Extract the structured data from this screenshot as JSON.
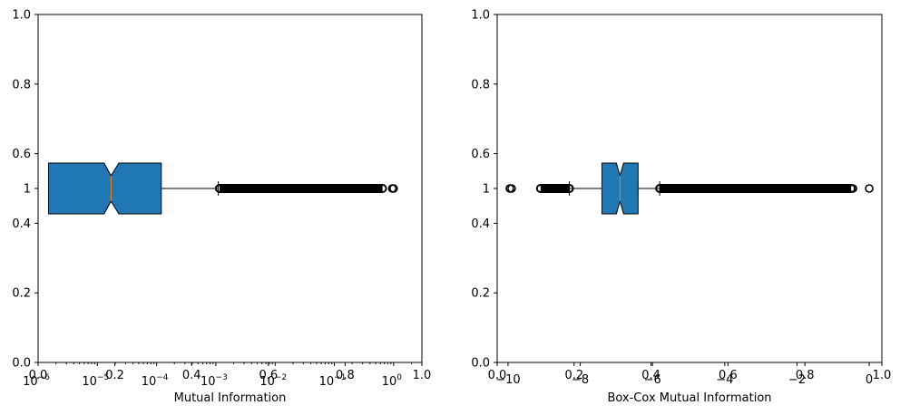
{
  "chart_data": [
    {
      "type": "boxplot",
      "orientation": "horizontal",
      "notched": true,
      "xscale": "log",
      "xlabel": "Mutual Information",
      "xlim": [
        1e-06,
        3
      ],
      "x_ticks": [
        {
          "value": 1e-06,
          "base": "10",
          "exp": "−6"
        },
        {
          "value": 1e-05,
          "base": "10",
          "exp": "−5"
        },
        {
          "value": 0.0001,
          "base": "10",
          "exp": "−4"
        },
        {
          "value": 0.001,
          "base": "10",
          "exp": "−3"
        },
        {
          "value": 0.01,
          "base": "10",
          "exp": "−2"
        },
        {
          "value": 0.1,
          "base": "10",
          "exp": "−1"
        },
        {
          "value": 1,
          "base": "10",
          "exp": "0"
        }
      ],
      "overlay_ticks": [
        "0.0",
        "0.2",
        "0.4",
        "0.6",
        "0.8",
        "1.0"
      ],
      "y_ticks": [
        "0.0",
        "0.2",
        "0.4",
        "0.6",
        "0.8",
        "1.0"
      ],
      "y_category": "1",
      "box": {
        "q1": 1.5e-06,
        "median": 1.7e-05,
        "q3": 0.00012,
        "notch_low": 1.3e-05,
        "notch_high": 2.3e-05,
        "whisker_low": 1.5e-06,
        "whisker_high": 0.0011
      },
      "outliers": {
        "start": 0.00115,
        "end": 0.65,
        "far": [
          0.95,
          1.0
        ]
      },
      "colors": {
        "box": "#1f77b4",
        "median": "#ff7f0e"
      }
    },
    {
      "type": "boxplot",
      "orientation": "horizontal",
      "notched": true,
      "xscale": "linear",
      "xlabel": "Box-Cox Mutual Information",
      "xlim": [
        -10.3,
        0.35
      ],
      "x_ticks": [
        "−10",
        "−8",
        "−6",
        "−4",
        "−2",
        "0"
      ],
      "x_tick_values": [
        -10,
        -8,
        -6,
        -4,
        -2,
        0
      ],
      "overlay_ticks": [
        "0.0",
        "0.2",
        "0.4",
        "0.6",
        "0.8",
        "1.0"
      ],
      "y_ticks": [
        "0.0",
        "0.2",
        "0.4",
        "0.6",
        "0.8",
        "1.0"
      ],
      "y_category": "1",
      "box": {
        "q1": -7.4,
        "median": -6.9,
        "q3": -6.4,
        "notch_low": -7.0,
        "notch_high": -6.8,
        "whisker_low": -8.3,
        "whisker_high": -5.8
      },
      "outliers": {
        "low_start": -9.1,
        "low_end": -8.3,
        "start": -5.8,
        "end": -0.5,
        "extra_low": [
          -9.95,
          -9.9
        ],
        "extra_high": [
          -0.45,
          0.0
        ]
      },
      "colors": {
        "box": "#1f77b4",
        "median": "#ff7f0e"
      }
    }
  ]
}
